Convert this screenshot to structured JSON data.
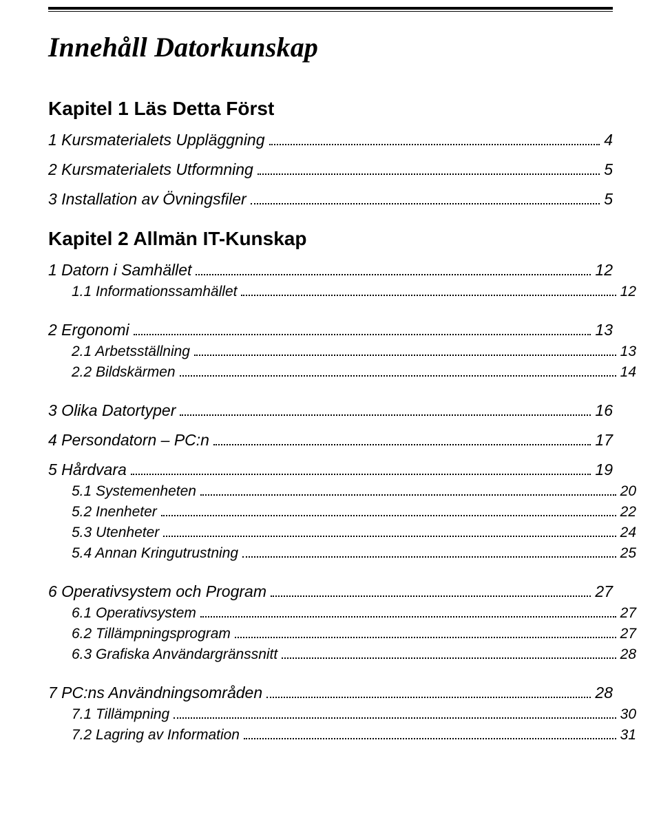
{
  "title": "Innehåll Datorkunskap",
  "chapters": [
    {
      "heading": "Kapitel 1  Läs Detta Först",
      "groups": [
        [
          {
            "level": 1,
            "label": "1 Kursmaterialets Uppläggning",
            "page": "4"
          },
          {
            "level": 1,
            "label": "2 Kursmaterialets Utformning",
            "page": "5"
          },
          {
            "level": 1,
            "label": "3 Installation av Övningsfiler",
            "page": "5"
          }
        ]
      ]
    },
    {
      "heading": "Kapitel 2  Allmän IT-Kunskap",
      "groups": [
        [
          {
            "level": 1,
            "label": "1 Datorn i Samhället",
            "page": "12"
          },
          {
            "level": 2,
            "label": "1.1 Informationssamhället",
            "page": "12"
          }
        ],
        [
          {
            "level": 1,
            "label": "2 Ergonomi",
            "page": "13"
          },
          {
            "level": 2,
            "label": "2.1 Arbetsställning",
            "page": "13"
          },
          {
            "level": 2,
            "label": "2.2 Bildskärmen",
            "page": "14"
          }
        ],
        [
          {
            "level": 1,
            "label": "3 Olika Datortyper",
            "page": "16"
          },
          {
            "level": 1,
            "label": "4 Persondatorn – PC:n",
            "page": "17"
          },
          {
            "level": 1,
            "label": "5 Hårdvara",
            "page": "19"
          },
          {
            "level": 2,
            "label": "5.1 Systemenheten",
            "page": "20"
          },
          {
            "level": 2,
            "label": "5.2 Inenheter",
            "page": "22"
          },
          {
            "level": 2,
            "label": "5.3 Utenheter",
            "page": "24"
          },
          {
            "level": 2,
            "label": "5.4 Annan Kringutrustning",
            "page": "25"
          }
        ],
        [
          {
            "level": 1,
            "label": "6 Operativsystem och Program",
            "page": "27"
          },
          {
            "level": 2,
            "label": "6.1 Operativsystem",
            "page": "27"
          },
          {
            "level": 2,
            "label": "6.2 Tillämpningsprogram",
            "page": "27"
          },
          {
            "level": 2,
            "label": "6.3 Grafiska Användargränssnitt",
            "page": "28"
          }
        ],
        [
          {
            "level": 1,
            "label": "7 PC:ns Användningsområden",
            "page": "28"
          },
          {
            "level": 2,
            "label": "7.1 Tillämpning",
            "page": "30"
          },
          {
            "level": 2,
            "label": "7.2 Lagring av Information",
            "page": "31"
          }
        ]
      ]
    }
  ]
}
